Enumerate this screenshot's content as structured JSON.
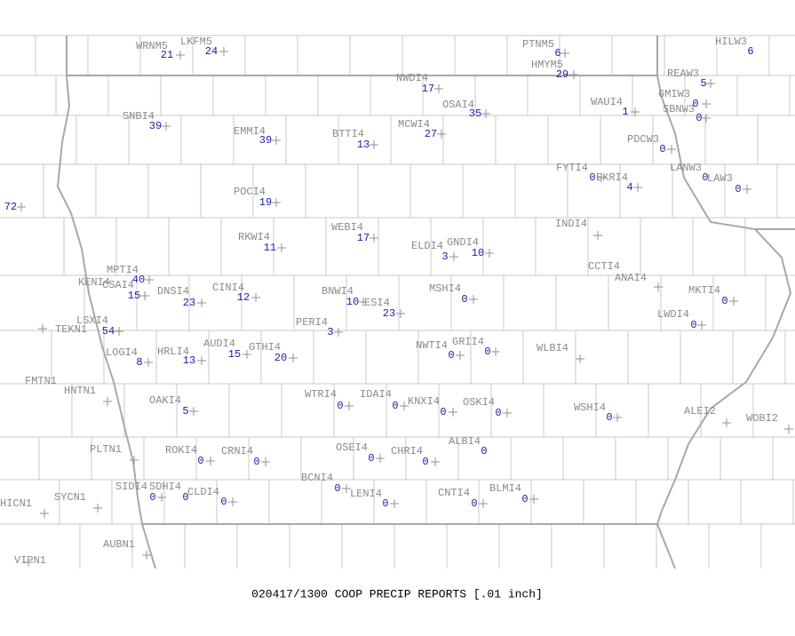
{
  "title": "020417/1300 COOP PRECIP REPORTS [.01 inch]",
  "stations": [
    {
      "name": "WRNM5",
      "value": 21
    },
    {
      "name": "LKFM5",
      "value": 24
    },
    {
      "name": "PTNM5",
      "value": 6
    },
    {
      "name": "HMYM5",
      "value": 29
    },
    {
      "name": "HILW3",
      "value": 6
    },
    {
      "name": "REAW3",
      "value": 5
    },
    {
      "name": "NWDI4",
      "value": 17
    },
    {
      "name": "OSAI4",
      "value": 35
    },
    {
      "name": "WAUI4",
      "value": 1
    },
    {
      "name": "GMIW3",
      "value": 0
    },
    {
      "name": "SBNW3",
      "value": 0
    },
    {
      "name": "SNBI4",
      "value": 39
    },
    {
      "name": "EMMI4",
      "value": 39
    },
    {
      "name": "BTTI4",
      "value": 13
    },
    {
      "name": "MCWI4",
      "value": 27
    },
    {
      "name": "PDCW3",
      "value": 0
    },
    {
      "name": "FYTI4",
      "value": 0
    },
    {
      "name": "EKRI4",
      "value": 4
    },
    {
      "name": "LANW3",
      "value": 0
    },
    {
      "name": "LAW3",
      "value": 0
    },
    {
      "name": "POCI4",
      "value": 19
    },
    {
      "value": 72
    },
    {
      "name": "INDI4"
    },
    {
      "name": "RKWI4",
      "value": 11
    },
    {
      "name": "WEBI4",
      "value": 17
    },
    {
      "name": "ELDI4",
      "value": 3
    },
    {
      "name": "GNDI4",
      "value": 10
    },
    {
      "name": "CCTI4"
    },
    {
      "name": "ANAI4"
    },
    {
      "name": "MPTI4",
      "value": 40
    },
    {
      "name": "KENI4"
    },
    {
      "name": "CSAI4",
      "value": 15
    },
    {
      "name": "DNSI4",
      "value": 23
    },
    {
      "name": "CINI4",
      "value": 12
    },
    {
      "name": "BNWI4",
      "value": 10
    },
    {
      "name": "ESI4",
      "value": 23
    },
    {
      "name": "MSHI4",
      "value": 0
    },
    {
      "name": "MKTI4",
      "value": 0
    },
    {
      "name": "LWDI4",
      "value": 0
    },
    {
      "name": "PERI4",
      "value": 3
    },
    {
      "name": "LSXI4",
      "value": 54
    },
    {
      "name": "TEKN1"
    },
    {
      "name": "LOGI4",
      "value": 8
    },
    {
      "name": "HRLI4",
      "value": 13
    },
    {
      "name": "AUDI4",
      "value": 15
    },
    {
      "name": "GTHI4",
      "value": 20
    },
    {
      "name": "NWTI4",
      "value": 0
    },
    {
      "name": "GRII4",
      "value": 0
    },
    {
      "name": "WLBI4"
    },
    {
      "name": "FMTN1"
    },
    {
      "name": "HNTN1"
    },
    {
      "name": "OAKI4",
      "value": 5
    },
    {
      "name": "WTRI4",
      "value": 0
    },
    {
      "name": "IDAI4",
      "value": 0
    },
    {
      "name": "KNXI4",
      "value": 0
    },
    {
      "name": "OSKI4",
      "value": 0
    },
    {
      "name": "WSHI4",
      "value": 0
    },
    {
      "name": "ALEI2"
    },
    {
      "name": "WOBI2"
    },
    {
      "name": "ALBI4",
      "value": 0
    },
    {
      "name": "PLTN1"
    },
    {
      "name": "ROKI4",
      "value": 0
    },
    {
      "name": "CRNI4",
      "value": 0
    },
    {
      "name": "OSEI4",
      "value": 0
    },
    {
      "name": "CHRI4",
      "value": 0
    },
    {
      "name": "SIDI4",
      "value": 0
    },
    {
      "name": "SDHI4",
      "value": 0
    },
    {
      "name": "CLDI4",
      "value": 0
    },
    {
      "name": "BCNI4",
      "value": 0
    },
    {
      "name": "LENI4",
      "value": 0
    },
    {
      "name": "CNTI4",
      "value": 0
    },
    {
      "name": "BLMI4",
      "value": 0
    },
    {
      "name": "HICN1"
    },
    {
      "name": "SYCN1"
    },
    {
      "name": "AUBN1"
    },
    {
      "name": "VIPN1"
    }
  ]
}
